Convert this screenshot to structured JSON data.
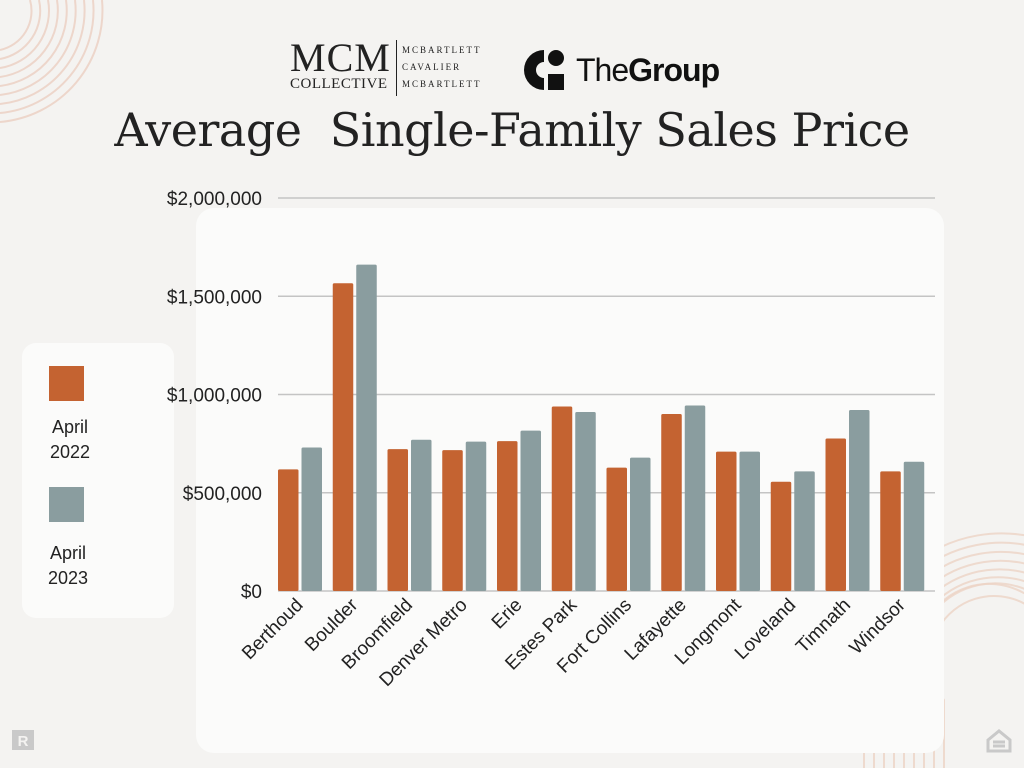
{
  "header": {
    "mcm_logo": {
      "big": "MCM",
      "small": "COLLECTIVE",
      "names": [
        "MCBARTLETT",
        "CAVALIER",
        "MCBARTLETT"
      ]
    },
    "group_logo": {
      "text_light": "The",
      "text_bold": "Group"
    },
    "title": "Average  Single-Family Sales Price"
  },
  "legend": {
    "items": [
      {
        "label_line1": "April",
        "label_line2": "2022",
        "color": "#c46331"
      },
      {
        "label_line1": "April",
        "label_line2": "2023",
        "color": "#8a9d9f"
      }
    ]
  },
  "chart_data": {
    "type": "bar",
    "title": "Average  Single-Family Sales Price",
    "categories": [
      "Berthoud",
      "Boulder",
      "Broomfield",
      "Denver Metro",
      "Erie",
      "Estes Park",
      "Fort Collins",
      "Lafayette",
      "Longmont",
      "Loveland",
      "Timnath",
      "Windsor"
    ],
    "series": [
      {
        "name": "April 2022",
        "color": "#c46331",
        "values": [
          619000,
          1566000,
          722000,
          717000,
          763000,
          939000,
          628000,
          901000,
          709000,
          556000,
          776000,
          609000
        ]
      },
      {
        "name": "April 2023",
        "color": "#8a9d9f",
        "values": [
          730000,
          1661000,
          770000,
          760000,
          816000,
          911000,
          679000,
          944000,
          709000,
          609000,
          921000,
          658000
        ]
      }
    ],
    "yticks": [
      "$0",
      "$500,000",
      "$1,000,000",
      "$1,500,000",
      "$2,000,000"
    ],
    "ytick_values": [
      0,
      500000,
      1000000,
      1500000,
      2000000
    ],
    "ylim": [
      0,
      2000000
    ],
    "grid": true,
    "legend_position": "left"
  }
}
